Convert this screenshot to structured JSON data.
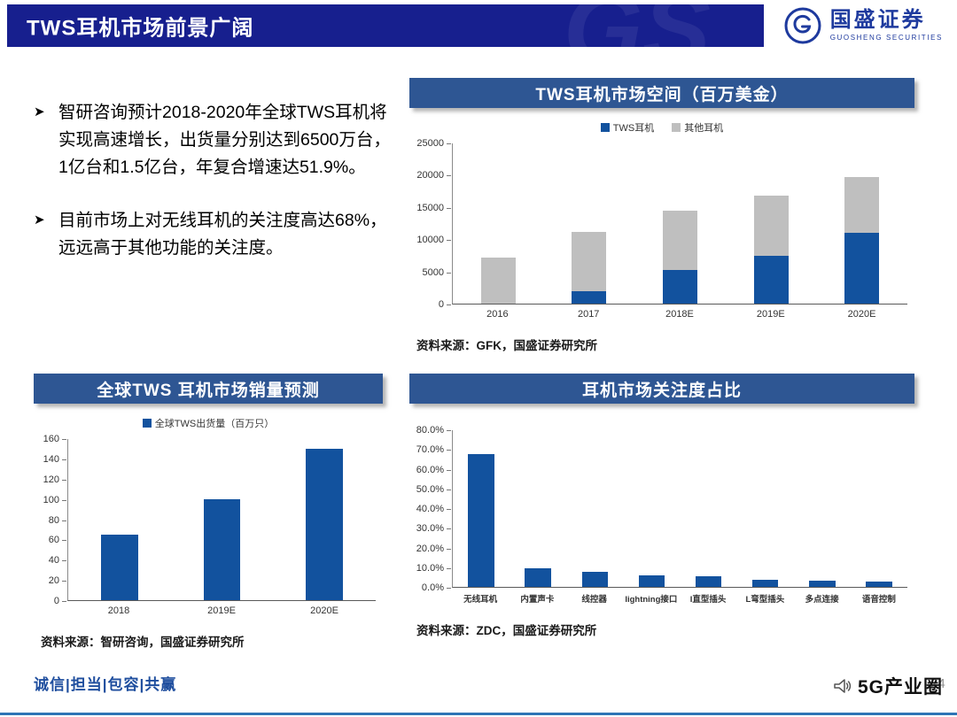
{
  "header": {
    "title": "TWS耳机市场前景广阔",
    "watermark": "GS",
    "logo": {
      "name": "国盛证券",
      "sub": "GUOSHENG SECURITIES"
    }
  },
  "bullets": [
    "智研咨询预计2018-2020年全球TWS耳机将实现高速增长，出货量分别达到6500万台，1亿台和1.5亿台，年复合增速达51.9%。",
    "目前市场上对无线耳机的关注度高达68%，远远高于其他功能的关注度。"
  ],
  "footer": {
    "slogan": "诚信|担当|包容|共赢",
    "brand": "5G产业圈",
    "page": "24"
  },
  "colors": {
    "primary_bar": "#12529E",
    "secondary_bar": "#BFBFBF",
    "title_bar": "#2E5693",
    "header_band": "#171F8E"
  },
  "chart_data": [
    {
      "type": "bar",
      "stacked": true,
      "title": "TWS耳机市场空间（百万美金）",
      "categories": [
        "2016",
        "2017",
        "2018E",
        "2019E",
        "2020E"
      ],
      "series": [
        {
          "name": "TWS耳机",
          "color": "#12529E",
          "values": [
            0,
            2000,
            5300,
            7500,
            11000
          ]
        },
        {
          "name": "其他耳机",
          "color": "#BFBFBF",
          "values": [
            7200,
            9200,
            9200,
            9300,
            8700
          ]
        }
      ],
      "ylim": [
        0,
        25000
      ],
      "yticks": [
        "0",
        "5000",
        "10000",
        "15000",
        "20000",
        "25000"
      ],
      "legend_position": "top",
      "grid": false,
      "source": "资料来源：GFK，国盛证券研究所"
    },
    {
      "type": "bar",
      "title": "全球TWS 耳机市场销量预测",
      "legend": "全球TWS出货量（百万只）",
      "categories": [
        "2018",
        "2019E",
        "2020E"
      ],
      "values": [
        65,
        100,
        150
      ],
      "color": "#12529E",
      "ylim": [
        0,
        160
      ],
      "yticks": [
        "0",
        "20",
        "40",
        "60",
        "80",
        "100",
        "120",
        "140",
        "160"
      ],
      "legend_position": "top",
      "grid": false,
      "source": "资料来源：智研咨询，国盛证券研究所"
    },
    {
      "type": "bar",
      "title": "耳机市场关注度占比",
      "categories": [
        "无线耳机",
        "内置声卡",
        "线控器",
        "lightning接口",
        "I直型插头",
        "L弯型插头",
        "多点连接",
        "语音控制"
      ],
      "values": [
        68,
        9.5,
        7.5,
        6,
        5.5,
        3.5,
        3,
        2.5
      ],
      "color": "#12529E",
      "ylim": [
        0,
        80
      ],
      "yticks": [
        "0.0%",
        "10.0%",
        "20.0%",
        "30.0%",
        "40.0%",
        "50.0%",
        "60.0%",
        "70.0%",
        "80.0%"
      ],
      "legend_position": "none",
      "grid": false,
      "source": "资料来源：ZDC，国盛证券研究所"
    }
  ]
}
